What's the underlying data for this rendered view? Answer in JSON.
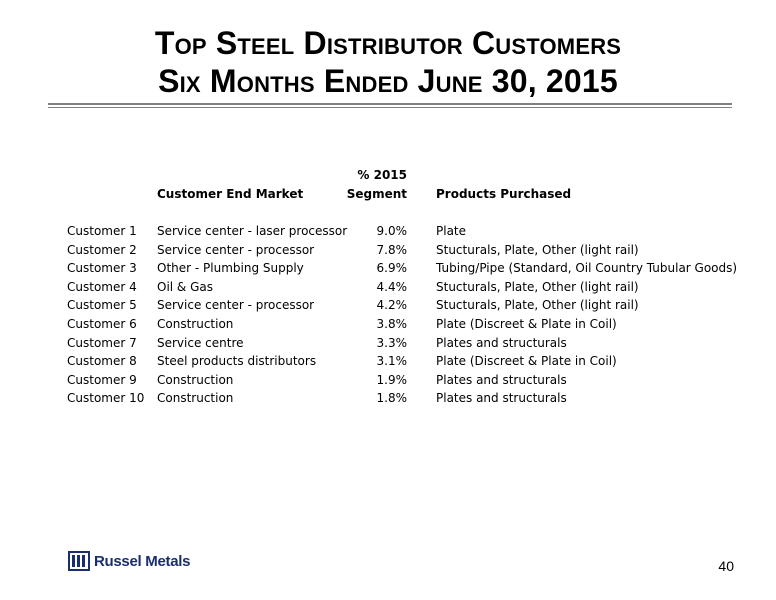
{
  "title": {
    "line1": "Top Steel Distributor Customers",
    "line2": "Six Months Ended June 30, 2015"
  },
  "table": {
    "headers": {
      "market": "Customer End Market",
      "segment_line1": "% 2015",
      "segment_line2": "Segment",
      "products": "Products Purchased"
    },
    "rows": [
      {
        "customer": "Customer 1",
        "market": "Service center - laser processor",
        "segment": "9.0%",
        "products": "Plate"
      },
      {
        "customer": "Customer 2",
        "market": "Service center - processor",
        "segment": "7.8%",
        "products": "Stucturals, Plate, Other (light rail)"
      },
      {
        "customer": "Customer 3",
        "market": "Other - Plumbing Supply",
        "segment": "6.9%",
        "products": "Tubing/Pipe (Standard, Oil Country Tubular Goods)"
      },
      {
        "customer": "Customer 4",
        "market": "Oil & Gas",
        "segment": "4.4%",
        "products": "Stucturals, Plate, Other (light rail)"
      },
      {
        "customer": "Customer 5",
        "market": "Service center - processor",
        "segment": "4.2%",
        "products": "Stucturals, Plate, Other (light rail)"
      },
      {
        "customer": "Customer 6",
        "market": "Construction",
        "segment": "3.8%",
        "products": "Plate (Discreet & Plate in Coil)"
      },
      {
        "customer": "Customer 7",
        "market": "Service centre",
        "segment": "3.3%",
        "products": "Plates and structurals"
      },
      {
        "customer": "Customer 8",
        "market": "Steel products distributors",
        "segment": "3.1%",
        "products": "Plate (Discreet & Plate in Coil)"
      },
      {
        "customer": "Customer 9",
        "market": "Construction",
        "segment": "1.9%",
        "products": "Plates and structurals"
      },
      {
        "customer": "Customer 10",
        "market": "Construction",
        "segment": "1.8%",
        "products": "Plates and structurals"
      }
    ]
  },
  "footer": {
    "logo_text": "Russel Metals",
    "page_number": "40",
    "logo_color": "#1a2e6e"
  }
}
